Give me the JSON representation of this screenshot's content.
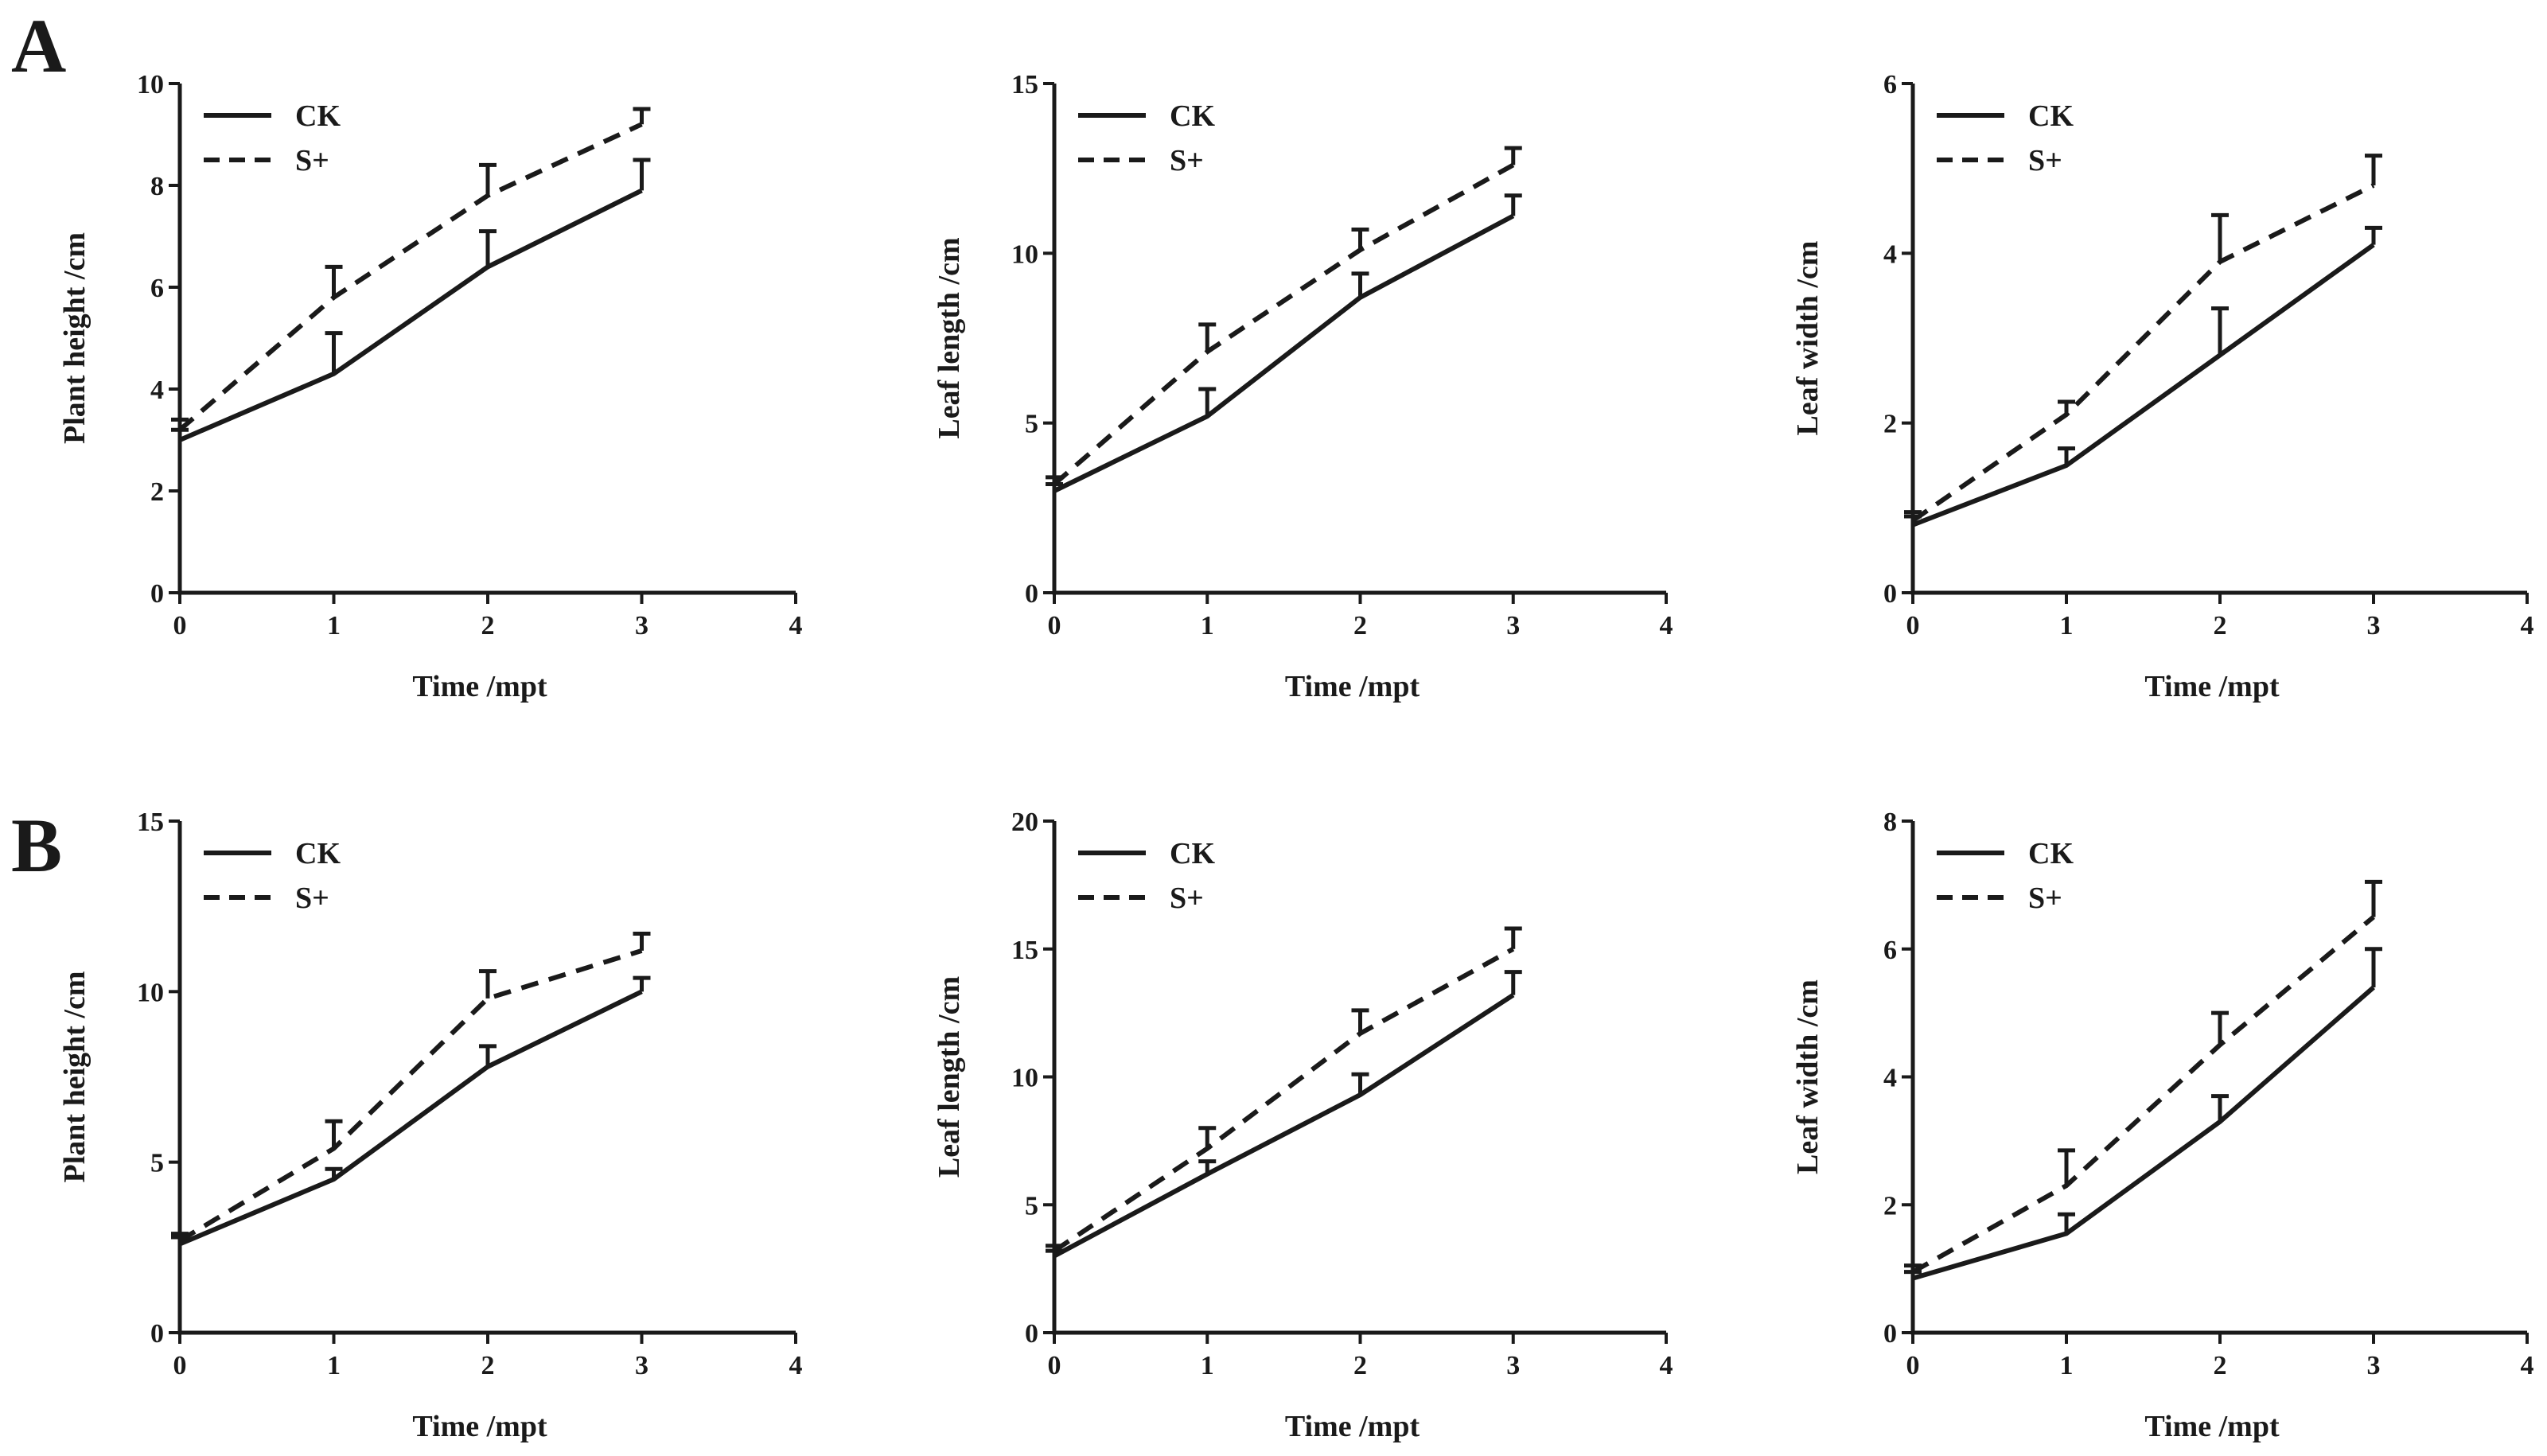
{
  "figure": {
    "panel_labels": [
      "A",
      "B"
    ]
  },
  "chart_data": [
    {
      "type": "line",
      "row": "A",
      "col": 0,
      "title": "",
      "xlabel": "Time /mpt",
      "ylabel": "Plant height /cm",
      "xlim": [
        0,
        4
      ],
      "ylim": [
        0,
        10
      ],
      "xticks": [
        0,
        1,
        2,
        3,
        4
      ],
      "yticks": [
        0,
        2,
        4,
        6,
        8,
        10
      ],
      "legend": "top-left",
      "series": [
        {
          "name": "CK",
          "style": "solid",
          "x": [
            0,
            1,
            2,
            3
          ],
          "values": [
            3.0,
            4.3,
            6.4,
            7.9
          ],
          "error": [
            0.2,
            0.8,
            0.7,
            0.6
          ]
        },
        {
          "name": "S+",
          "style": "dashed",
          "x": [
            0,
            1,
            2,
            3
          ],
          "values": [
            3.2,
            5.8,
            7.8,
            9.2
          ],
          "error": [
            0.2,
            0.6,
            0.6,
            0.3
          ]
        }
      ]
    },
    {
      "type": "line",
      "row": "A",
      "col": 1,
      "title": "",
      "xlabel": "Time /mpt",
      "ylabel": "Leaf length /cm",
      "xlim": [
        0,
        4
      ],
      "ylim": [
        0,
        15
      ],
      "xticks": [
        0,
        1,
        2,
        3,
        4
      ],
      "yticks": [
        0,
        5,
        10,
        15
      ],
      "legend": "top-left",
      "series": [
        {
          "name": "CK",
          "style": "solid",
          "x": [
            0,
            1,
            2,
            3
          ],
          "values": [
            3.0,
            5.2,
            8.7,
            11.1
          ],
          "error": [
            0.2,
            0.8,
            0.7,
            0.6
          ]
        },
        {
          "name": "S+",
          "style": "dashed",
          "x": [
            0,
            1,
            2,
            3
          ],
          "values": [
            3.2,
            7.1,
            10.1,
            12.6
          ],
          "error": [
            0.2,
            0.8,
            0.6,
            0.5
          ]
        }
      ]
    },
    {
      "type": "line",
      "row": "A",
      "col": 2,
      "title": "",
      "xlabel": "Time /mpt",
      "ylabel": "Leaf width /cm",
      "xlim": [
        0,
        4
      ],
      "ylim": [
        0,
        6
      ],
      "xticks": [
        0,
        1,
        2,
        3,
        4
      ],
      "yticks": [
        0,
        2,
        4,
        6
      ],
      "legend": "top-left",
      "series": [
        {
          "name": "CK",
          "style": "solid",
          "x": [
            0,
            1,
            2,
            3
          ],
          "values": [
            0.8,
            1.5,
            2.8,
            4.1
          ],
          "error": [
            0.1,
            0.2,
            0.55,
            0.2
          ]
        },
        {
          "name": "S+",
          "style": "dashed",
          "x": [
            0,
            1,
            2,
            3
          ],
          "values": [
            0.85,
            2.1,
            3.9,
            4.8
          ],
          "error": [
            0.1,
            0.15,
            0.55,
            0.35
          ]
        }
      ]
    },
    {
      "type": "line",
      "row": "B",
      "col": 0,
      "title": "",
      "xlabel": "Time /mpt",
      "ylabel": "Plant height /cm",
      "xlim": [
        0,
        4
      ],
      "ylim": [
        0,
        15
      ],
      "xticks": [
        0,
        1,
        2,
        3,
        4
      ],
      "yticks": [
        0,
        5,
        10,
        15
      ],
      "legend": "top-left",
      "series": [
        {
          "name": "CK",
          "style": "solid",
          "x": [
            0,
            1,
            2,
            3
          ],
          "values": [
            2.6,
            4.5,
            7.8,
            10.0
          ],
          "error": [
            0.2,
            0.3,
            0.6,
            0.4
          ]
        },
        {
          "name": "S+",
          "style": "dashed",
          "x": [
            0,
            1,
            2,
            3
          ],
          "values": [
            2.7,
            5.4,
            9.8,
            11.2
          ],
          "error": [
            0.2,
            0.8,
            0.8,
            0.5
          ]
        }
      ]
    },
    {
      "type": "line",
      "row": "B",
      "col": 1,
      "title": "",
      "xlabel": "Time /mpt",
      "ylabel": "Leaf length /cm",
      "xlim": [
        0,
        4
      ],
      "ylim": [
        0,
        20
      ],
      "xticks": [
        0,
        1,
        2,
        3,
        4
      ],
      "yticks": [
        0,
        5,
        10,
        15,
        20
      ],
      "legend": "top-left",
      "series": [
        {
          "name": "CK",
          "style": "solid",
          "x": [
            0,
            1,
            2,
            3
          ],
          "values": [
            3.0,
            6.2,
            9.3,
            13.2
          ],
          "error": [
            0.2,
            0.5,
            0.8,
            0.9
          ]
        },
        {
          "name": "S+",
          "style": "dashed",
          "x": [
            0,
            1,
            2,
            3
          ],
          "values": [
            3.2,
            7.2,
            11.7,
            15.0
          ],
          "error": [
            0.2,
            0.8,
            0.9,
            0.8
          ]
        }
      ]
    },
    {
      "type": "line",
      "row": "B",
      "col": 2,
      "title": "",
      "xlabel": "Time /mpt",
      "ylabel": "Leaf width /cm",
      "xlim": [
        0,
        4
      ],
      "ylim": [
        0,
        8
      ],
      "xticks": [
        0,
        1,
        2,
        3,
        4
      ],
      "yticks": [
        0,
        2,
        4,
        6,
        8
      ],
      "legend": "top-left",
      "series": [
        {
          "name": "CK",
          "style": "solid",
          "x": [
            0,
            1,
            2,
            3
          ],
          "values": [
            0.85,
            1.55,
            3.3,
            5.4
          ],
          "error": [
            0.1,
            0.3,
            0.4,
            0.6
          ]
        },
        {
          "name": "S+",
          "style": "dashed",
          "x": [
            0,
            1,
            2,
            3
          ],
          "values": [
            0.95,
            2.3,
            4.5,
            6.5
          ],
          "error": [
            0.1,
            0.55,
            0.5,
            0.55
          ]
        }
      ]
    }
  ]
}
